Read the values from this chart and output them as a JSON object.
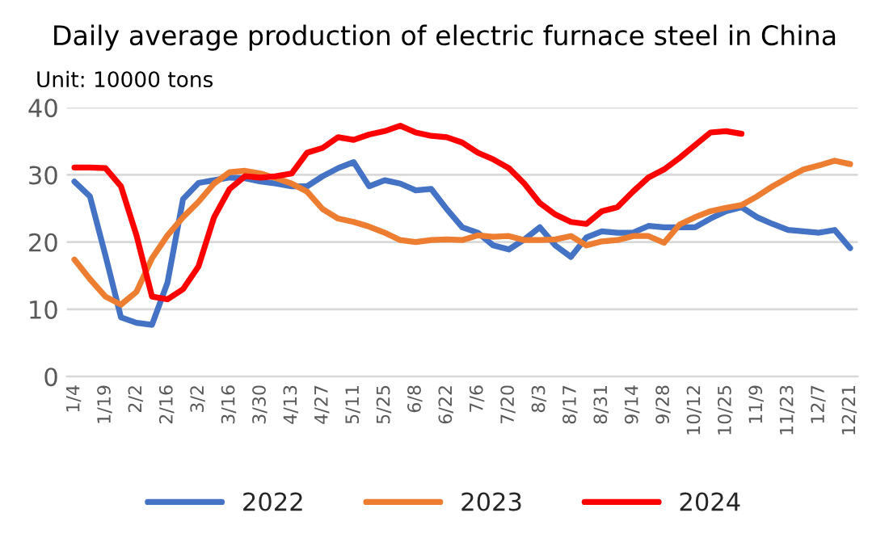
{
  "chart_data": {
    "type": "line",
    "title": "Daily average production of electric furnace steel in China",
    "ylabel": "Unit: 10000 tons",
    "categories": [
      "1/4",
      null,
      "1/19",
      null,
      "2/2",
      null,
      "2/16",
      null,
      "3/2",
      null,
      "3/16",
      null,
      "3/30",
      null,
      "4/13",
      null,
      "4/27",
      null,
      "5/11",
      null,
      "5/25",
      null,
      "6/8",
      null,
      "6/22",
      null,
      "7/6",
      null,
      "7/20",
      null,
      "8/3",
      null,
      "8/17",
      null,
      "8/31",
      null,
      "9/14",
      null,
      "9/28",
      null,
      "10/12",
      null,
      "10/25",
      null,
      "11/9",
      null,
      "11/23",
      null,
      "12/7",
      null,
      "12/21"
    ],
    "series": [
      {
        "name": "2022",
        "color": "#4472c4",
        "values": [
          29,
          26.8,
          18,
          8.8,
          8,
          7.7,
          14,
          26.4,
          28.8,
          29.2,
          29.6,
          29.5,
          29,
          28.7,
          28.3,
          28.3,
          29.8,
          31,
          31.9,
          28.3,
          29.2,
          28.7,
          27.7,
          27.9,
          24.9,
          22.2,
          21.4,
          19.5,
          18.9,
          20.4,
          22.2,
          19.5,
          17.8,
          20.7,
          21.6,
          21.4,
          21.4,
          22.4,
          22.2,
          22.2,
          22.2,
          23.5,
          24.6,
          25.2,
          23.7,
          22.7,
          21.8,
          21.6,
          21.4,
          21.8,
          19.1
        ]
      },
      {
        "name": "2023",
        "color": "#ed7d31",
        "values": [
          17.4,
          14.5,
          11.9,
          10.7,
          12.6,
          17.6,
          21,
          23.7,
          26,
          28.7,
          30.4,
          30.6,
          30.2,
          29.5,
          28.7,
          27.5,
          24.9,
          23.5,
          23,
          22.3,
          21.4,
          20.3,
          20,
          20.3,
          20.4,
          20.3,
          21,
          20.8,
          20.9,
          20.3,
          20.3,
          20.4,
          20.9,
          19.5,
          20.1,
          20.3,
          20.9,
          20.9,
          19.9,
          22.6,
          23.7,
          24.6,
          25.1,
          25.5,
          26.8,
          28.3,
          29.6,
          30.8,
          31.4,
          32.1,
          31.6
        ]
      },
      {
        "name": "2024",
        "color": "#ff0000",
        "values": [
          31.1,
          31.1,
          31,
          28.3,
          21,
          11.9,
          11.5,
          13,
          16.4,
          23.7,
          27.9,
          29.8,
          29.6,
          29.8,
          30.2,
          33.3,
          34,
          35.6,
          35.2,
          36,
          36.5,
          37.3,
          36.3,
          35.8,
          35.6,
          34.8,
          33.3,
          32.3,
          31,
          28.7,
          25.8,
          24.1,
          23,
          22.7,
          24.6,
          25.2,
          27.5,
          29.6,
          30.8,
          32.5,
          34.4,
          36.3,
          36.5,
          36.1,
          null,
          null,
          null,
          null,
          null,
          null,
          null
        ]
      }
    ],
    "ylim": [
      0,
      40
    ],
    "yticks": [
      0,
      10,
      20,
      30,
      40
    ],
    "grid": "y",
    "legend": "bottom",
    "line_style": "solid",
    "marker": "none"
  }
}
